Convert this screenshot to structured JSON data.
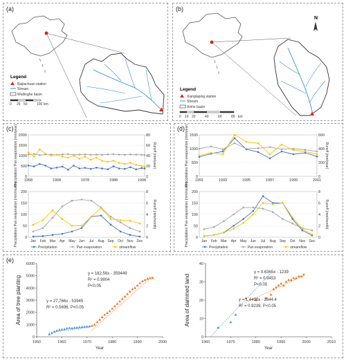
{
  "panels": {
    "a": {
      "label": "(a)",
      "legend_title": "Legend",
      "legend_items": [
        "Baijiachuan station",
        "Stream",
        "Wudinghe basin"
      ],
      "scale_ticks": [
        "0",
        "25",
        "50",
        "100"
      ],
      "scale_unit": "km"
    },
    "b": {
      "label": "(b)",
      "north": "N",
      "legend_title": "Legend",
      "legend_items": [
        "Xianglaping station",
        "Stream",
        "Xinhe basin"
      ],
      "scale_ticks": [
        "0",
        "10",
        "20",
        "40",
        "60",
        "80"
      ],
      "scale_unit": "km"
    },
    "c": {
      "label": "(c)",
      "annual": {
        "ylabel_left": "Precipitation/ Pan evaporation (mm/year)",
        "ylabel_right": "Runoff (mm/year)",
        "xticks": [
          "1958",
          "1968",
          "1978",
          "1988",
          "1998"
        ],
        "yticks_left": [
          "0",
          "500",
          "1000",
          "1500",
          "2000"
        ],
        "yticks_right": [
          "0",
          "20",
          "40",
          "60",
          "80"
        ]
      },
      "monthly": {
        "ylabel_left": "Precipitation/ Pan evaporation (mm/month)",
        "ylabel_right": "Runoff (mm/month)",
        "months": [
          "Jan",
          "Feb",
          "Mar",
          "Apr",
          "May",
          "Jun",
          "Jul",
          "Aug",
          "Sep",
          "Oct",
          "Nov",
          "Dec"
        ],
        "yticks_left": [
          "0",
          "50",
          "100",
          "150",
          "200"
        ],
        "yticks_right": [
          "0",
          "2",
          "4",
          "6",
          "8"
        ],
        "legend": [
          "Precipitation",
          "Pan evaporation",
          "streamflow"
        ]
      }
    },
    "d": {
      "label": "(d)",
      "annual": {
        "ylabel_left": "Precipitation/ Pan evaporation (mm/year)",
        "ylabel_right": "Runoff (mm/year)",
        "xticks": [
          "1991",
          "1993",
          "1995",
          "1997",
          "1999",
          "2001"
        ],
        "yticks_left": [
          "0",
          "500",
          "1000",
          "1500"
        ],
        "yticks_right": [
          "0",
          "200",
          "400",
          "600"
        ]
      },
      "monthly": {
        "ylabel_left": "Precipitation/ Pan evaporation (mm/month)",
        "ylabel_right": "Runoff (mm/month)",
        "months": [
          "Jan",
          "Feb",
          "Mar",
          "Apr",
          "May",
          "Jun",
          "Jul",
          "Aug",
          "Sep",
          "Oct",
          "Nov",
          "Dec"
        ],
        "yticks_left": [
          "0",
          "50",
          "100",
          "150",
          "200"
        ],
        "yticks_right": [
          "0",
          "2",
          "4",
          "6",
          "8"
        ],
        "legend": [
          "Precipitation",
          "Pan evaporation",
          "streamflow"
        ]
      }
    },
    "e": {
      "label": "(e)",
      "left": {
        "ylabel": "Area of tree planting",
        "xlabel": "Year",
        "xticks": [
          "1950",
          "1960",
          "1970",
          "1980",
          "1990",
          "2000"
        ],
        "yticks": [
          "0",
          "1000",
          "2000",
          "3000",
          "4000",
          "5000",
          "6000"
        ],
        "eq_upper": [
          "y = 182.56x - 359449",
          "R² = 0.9804",
          "P<0.05"
        ],
        "eq_lower": [
          "y = 27.766x - 53945",
          "R² = 0.5696, P<0.05"
        ]
      },
      "right": {
        "ylabel": "Area of dammed land",
        "xlabel": "Year",
        "xticks": [
          "1960",
          "1970",
          "1980",
          "1990",
          "2000",
          "2010"
        ],
        "yticks": [
          "0",
          "10",
          "20",
          "30",
          "40"
        ],
        "eq_upper": [
          "y = 0.6365x - 1239",
          "R² = 0.9453",
          "P<0.05"
        ],
        "eq_lower": [
          "y = 1.4498x - 2844.4",
          "R² = 0.9239, P<0.05"
        ]
      }
    }
  },
  "colors": {
    "precip": "#4472c4",
    "evap": "#a5a5a5",
    "flow": "#ffc000",
    "triangle_blue": "#5b9bd5",
    "triangle_orange": "#ed7d31",
    "station": "#e3261b",
    "stream": "#2a8fd6"
  },
  "chart_data": [
    {
      "type": "line",
      "panel": "c-annual",
      "x": [
        1958,
        1960,
        1962,
        1964,
        1966,
        1968,
        1970,
        1972,
        1974,
        1976,
        1978,
        1980,
        1982,
        1984,
        1986,
        1988,
        1990,
        1992,
        1994,
        1996,
        1998,
        1999
      ],
      "series": [
        {
          "name": "Precipitation",
          "axis": "left",
          "values": [
            520,
            480,
            600,
            520,
            380,
            420,
            470,
            320,
            520,
            380,
            410,
            360,
            420,
            380,
            340,
            480,
            380,
            360,
            440,
            340,
            400,
            380
          ]
        },
        {
          "name": "Pan evaporation",
          "axis": "left",
          "values": [
            1050,
            1080,
            1020,
            1060,
            1050,
            1040,
            1060,
            1070,
            1040,
            1050,
            1060,
            1040,
            1050,
            1040,
            1060,
            1070,
            1050,
            1040,
            1060,
            1050,
            1040,
            1030
          ]
        },
        {
          "name": "streamflow",
          "axis": "right",
          "values": [
            46,
            38,
            52,
            44,
            40,
            42,
            38,
            36,
            40,
            34,
            38,
            32,
            36,
            30,
            28,
            30,
            26,
            24,
            26,
            22,
            20,
            19
          ]
        }
      ],
      "ylim_left": [
        0,
        2000
      ],
      "ylim_right": [
        0,
        80
      ]
    },
    {
      "type": "line",
      "panel": "c-monthly",
      "categories": [
        "Jan",
        "Feb",
        "Mar",
        "Apr",
        "May",
        "Jun",
        "Jul",
        "Aug",
        "Sep",
        "Oct",
        "Nov",
        "Dec"
      ],
      "series": [
        {
          "name": "Precipitation",
          "axis": "left",
          "values": [
            3,
            5,
            10,
            15,
            25,
            40,
            90,
            95,
            55,
            25,
            10,
            3
          ]
        },
        {
          "name": "Pan evaporation",
          "axis": "left",
          "values": [
            25,
            40,
            85,
            135,
            160,
            165,
            160,
            130,
            90,
            65,
            40,
            25
          ]
        },
        {
          "name": "streamflow",
          "axis": "right",
          "values": [
            2.2,
            3.0,
            4.7,
            3.2,
            2.0,
            2.0,
            3.6,
            5.1,
            3.2,
            3.0,
            2.9,
            2.4
          ]
        }
      ],
      "ylim_left": [
        0,
        200
      ],
      "ylim_right": [
        0,
        8
      ]
    },
    {
      "type": "line",
      "panel": "d-annual",
      "x": [
        1991,
        1992,
        1993,
        1994,
        1995,
        1996,
        1997,
        1998,
        1999,
        2000,
        2001
      ],
      "series": [
        {
          "name": "Precipitation",
          "axis": "left",
          "values": [
            700,
            820,
            900,
            1380,
            980,
            880,
            650,
            900,
            800,
            850,
            720
          ]
        },
        {
          "name": "Pan evaporation",
          "axis": "left",
          "values": [
            1000,
            1080,
            980,
            1200,
            1000,
            1020,
            1060,
            980,
            1000,
            960,
            900
          ]
        },
        {
          "name": "streamflow",
          "axis": "right",
          "values": [
            300,
            340,
            320,
            600,
            500,
            480,
            320,
            460,
            380,
            360,
            320
          ]
        }
      ],
      "ylim_left": [
        0,
        1500
      ],
      "ylim_right": [
        0,
        600
      ]
    },
    {
      "type": "line",
      "panel": "d-monthly",
      "categories": [
        "Jan",
        "Feb",
        "Mar",
        "Apr",
        "May",
        "Jun",
        "Jul",
        "Aug",
        "Sep",
        "Oct",
        "Nov",
        "Dec"
      ],
      "series": [
        {
          "name": "Precipitation",
          "axis": "left",
          "values": [
            5,
            10,
            20,
            50,
            80,
            115,
            180,
            150,
            150,
            80,
            30,
            8
          ]
        },
        {
          "name": "Pan evaporation",
          "axis": "left",
          "values": [
            35,
            45,
            70,
            100,
            130,
            130,
            125,
            110,
            80,
            60,
            40,
            30
          ]
        },
        {
          "name": "streamflow",
          "axis": "right",
          "values": [
            0.2,
            0.4,
            0.8,
            1.5,
            2.5,
            4.0,
            6.0,
            5.8,
            6.0,
            3.5,
            1.5,
            0.5
          ]
        }
      ],
      "ylim_left": [
        0,
        200
      ],
      "ylim_right": [
        0,
        8
      ]
    },
    {
      "type": "scatter",
      "panel": "e-left",
      "series": [
        {
          "name": "",
          "color": "triangle_blue",
          "x": [
            1955,
            1956,
            1957,
            1958,
            1959,
            1960,
            1961,
            1962,
            1963,
            1964,
            1965,
            1966,
            1967,
            1968,
            1969,
            1970,
            1971
          ],
          "y": [
            200,
            300,
            420,
            500,
            560,
            600,
            620,
            680,
            720,
            700,
            740,
            760,
            780,
            800,
            820,
            840,
            860
          ]
        },
        {
          "name": "",
          "color": "triangle_orange",
          "x": [
            1972,
            1973,
            1974,
            1975,
            1976,
            1977,
            1978,
            1979,
            1980,
            1981,
            1982,
            1983,
            1984,
            1985,
            1986,
            1987,
            1988,
            1989,
            1990,
            1991,
            1992,
            1993,
            1994,
            1995,
            1996
          ],
          "y": [
            900,
            1000,
            1200,
            1400,
            1600,
            1800,
            1950,
            2100,
            2300,
            2500,
            2700,
            2900,
            3100,
            3300,
            3500,
            3700,
            3900,
            4000,
            4200,
            4400,
            4550,
            4650,
            4750,
            4800,
            4820
          ]
        }
      ],
      "xlim": [
        1950,
        2000
      ],
      "ylim": [
        0,
        6000
      ]
    },
    {
      "type": "scatter",
      "panel": "e-right",
      "series": [
        {
          "name": "",
          "color": "triangle_blue",
          "x": [
            1965,
            1970,
            1972
          ],
          "y": [
            5,
            8,
            12
          ]
        },
        {
          "name": "",
          "color": "triangle_orange",
          "x": [
            1976,
            1980,
            1984,
            1986,
            1987,
            1988,
            1989,
            1990,
            1991,
            1992,
            1993,
            1994,
            1995,
            1996,
            1997,
            1998,
            1999
          ],
          "y": [
            21,
            20,
            21,
            23,
            26,
            27,
            28,
            29,
            28,
            30,
            31,
            31,
            32,
            32,
            33,
            33,
            34
          ]
        }
      ],
      "xlim": [
        1960,
        2010
      ],
      "ylim": [
        0,
        40
      ]
    }
  ]
}
